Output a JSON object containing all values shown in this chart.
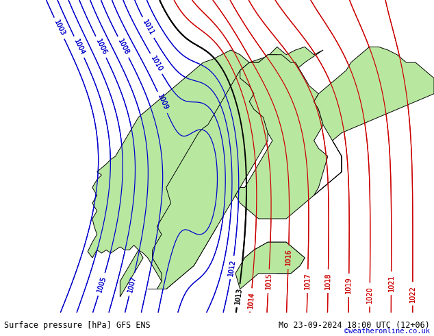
{
  "title_left": "Surface pressure [hPa] GFS ENS",
  "title_right": "Mo 23-09-2024 18:00 UTC (12+06)",
  "credit": "©weatheronline.co.uk",
  "bg_color": "#d8d8d8",
  "land_color": "#b8e8a0",
  "border_color": "#000000",
  "isobar_blue_color": "#0000cc",
  "isobar_red_color": "#cc0000",
  "isobar_black_color": "#000000",
  "label_fontsize": 7,
  "footer_fontsize": 8.5,
  "credit_color": "#0000cc",
  "figsize": [
    6.34,
    4.9
  ],
  "dpi": 100
}
